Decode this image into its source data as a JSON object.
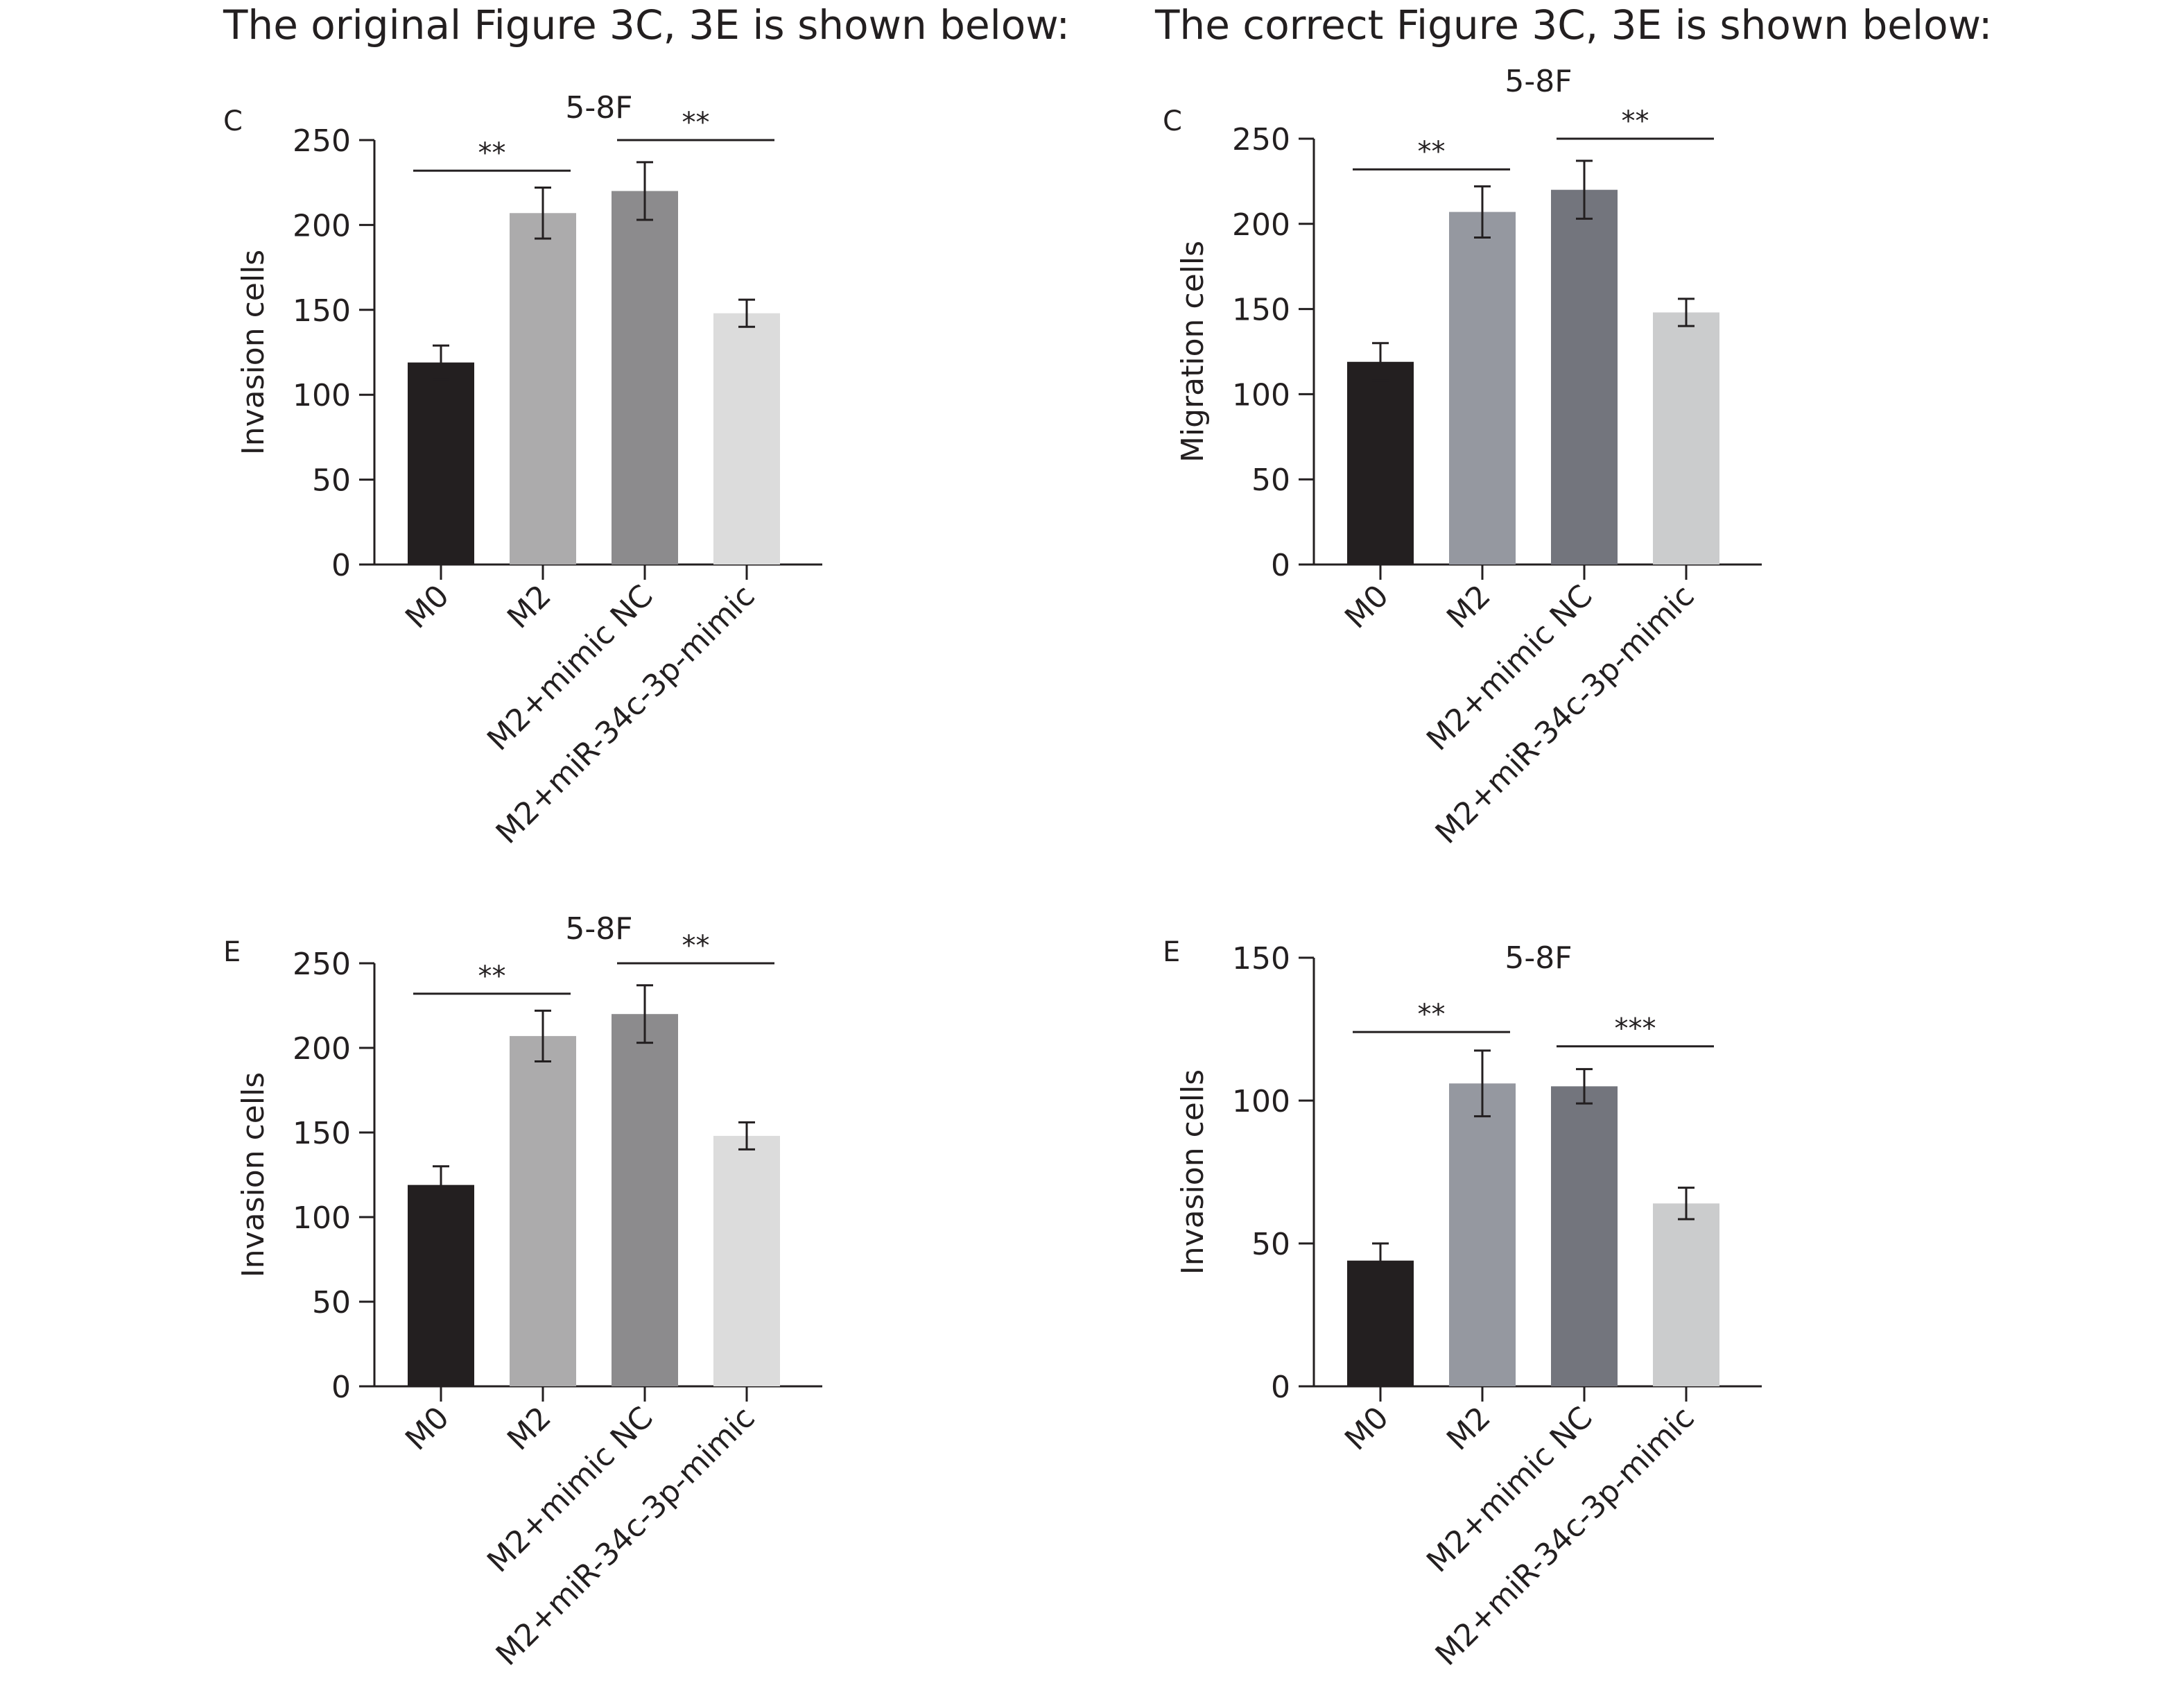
{
  "headings": {
    "left": "The original Figure 3C, 3E is shown below:",
    "right": "The correct Figure 3C, 3E is shown below:"
  },
  "chart_data": [
    {
      "type": "bar",
      "panel": "C",
      "title": "5-8F",
      "ylabel": "Invasion cells",
      "categories": [
        "M0",
        "M2",
        "M2+mimic NC",
        "M2+miR-34c-3p-mimic"
      ],
      "values": [
        119,
        207,
        220,
        148
      ],
      "errors": [
        10,
        15,
        17,
        8
      ],
      "colors": [
        "#231f20",
        "#acabac",
        "#8c8b8d",
        "#dcdcdc"
      ],
      "ylim": [
        0,
        250
      ],
      "yticks": [
        0,
        50,
        100,
        150,
        200,
        250
      ],
      "significance": [
        {
          "from": 0,
          "to": 1,
          "label": "**",
          "y": 232
        },
        {
          "from": 2,
          "to": 3,
          "label": "**",
          "y": 250
        }
      ]
    },
    {
      "type": "bar",
      "panel": "C",
      "title": "5-8F",
      "ylabel": "Migration cells",
      "categories": [
        "M0",
        "M2",
        "M2+mimic NC",
        "M2+miR-34c-3p-mimic"
      ],
      "values": [
        119,
        207,
        220,
        148
      ],
      "errors": [
        11,
        15,
        17,
        8
      ],
      "colors": [
        "#231f20",
        "#9598a0",
        "#73757d",
        "#cbcccd"
      ],
      "ylim": [
        0,
        250
      ],
      "yticks": [
        0,
        50,
        100,
        150,
        200,
        250
      ],
      "significance": [
        {
          "from": 0,
          "to": 1,
          "label": "**",
          "y": 232
        },
        {
          "from": 2,
          "to": 3,
          "label": "**",
          "y": 250
        }
      ]
    },
    {
      "type": "bar",
      "panel": "E",
      "title": "5-8F",
      "ylabel": "Invasion cells",
      "categories": [
        "M0",
        "M2",
        "M2+mimic NC",
        "M2+miR-34c-3p-mimic"
      ],
      "values": [
        119,
        207,
        220,
        148
      ],
      "errors": [
        11,
        15,
        17,
        8
      ],
      "colors": [
        "#231f20",
        "#acabac",
        "#8c8b8d",
        "#dcdcdc"
      ],
      "ylim": [
        0,
        250
      ],
      "yticks": [
        0,
        50,
        100,
        150,
        200,
        250
      ],
      "significance": [
        {
          "from": 0,
          "to": 1,
          "label": "**",
          "y": 232
        },
        {
          "from": 2,
          "to": 3,
          "label": "**",
          "y": 250
        }
      ]
    },
    {
      "type": "bar",
      "panel": "E",
      "title": "5-8F",
      "ylabel": "Invasion cells",
      "categories": [
        "M0",
        "M2",
        "M2+mimic NC",
        "M2+miR-34c-3p-mimic"
      ],
      "values": [
        44,
        106,
        105,
        64
      ],
      "errors": [
        6,
        11.5,
        6,
        5.5
      ],
      "colors": [
        "#231f20",
        "#9598a0",
        "#73757d",
        "#cbcccd"
      ],
      "ylim": [
        0,
        150
      ],
      "yticks": [
        0,
        50,
        100,
        150
      ],
      "significance": [
        {
          "from": 0,
          "to": 1,
          "label": "**",
          "y": 124
        },
        {
          "from": 2,
          "to": 3,
          "label": "***",
          "y": 119
        }
      ]
    }
  ]
}
